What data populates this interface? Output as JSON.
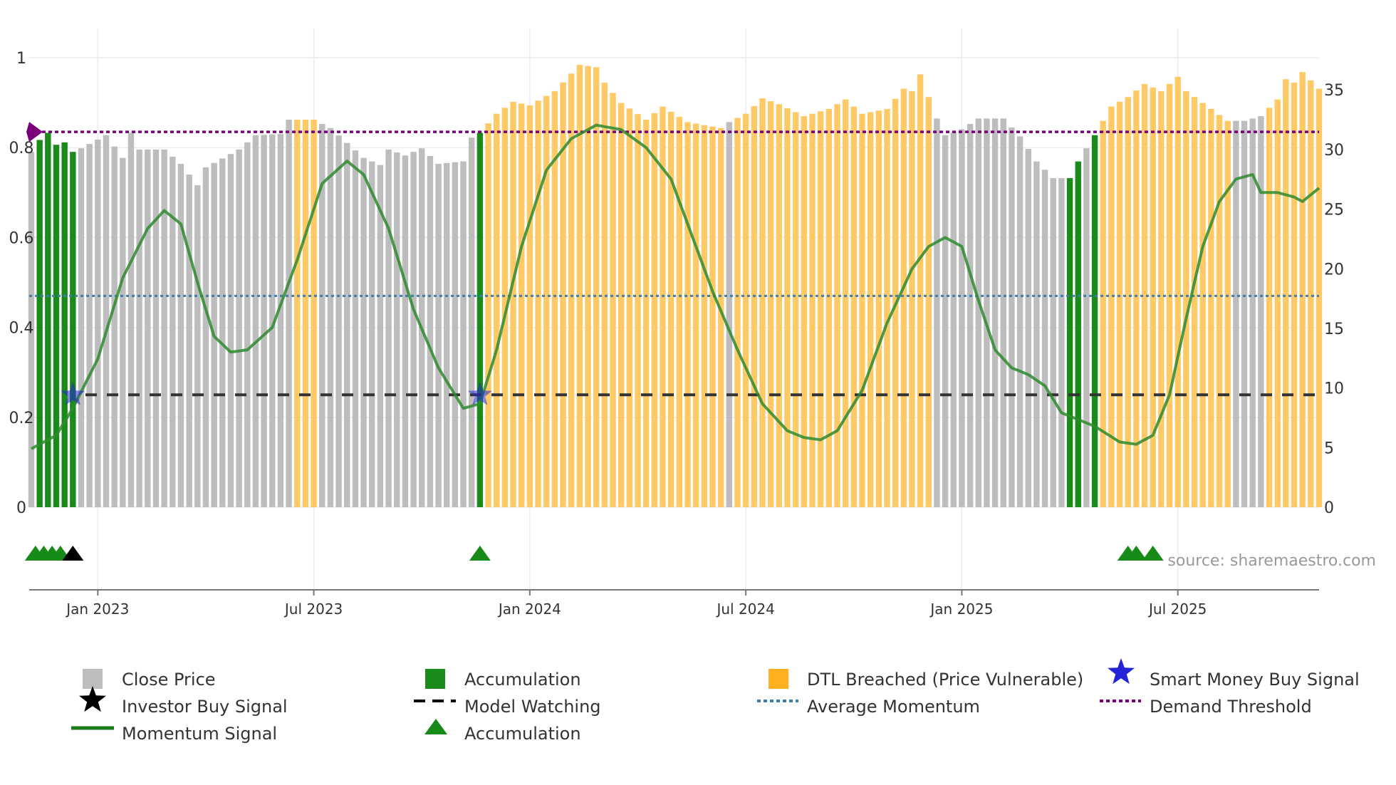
{
  "chart_data": {
    "type": "bar",
    "title": "",
    "xlabel": "",
    "ylabel_left": "",
    "ylabel_right": "",
    "source_label": "source: sharemaestro.com",
    "colors": {
      "close": "#bdbdbd",
      "accumulation": "#1a8a1a",
      "dtl": "#ffc966",
      "momentum": "#2e8b2e",
      "model_watching": "#333333",
      "average_momentum": "#3a7fb0",
      "demand_threshold": "#7a007a",
      "investor_signal": "#000000",
      "smart_money": "#2424d6",
      "accumulation_marker": "#178a17",
      "axis": "#444444",
      "grid": "#e9ecf2",
      "tick_text": "#333333",
      "source_text": "#999999"
    },
    "left_axis": {
      "range": [
        0,
        1
      ],
      "ticks": [
        0,
        0.2,
        0.4,
        0.6,
        0.8,
        1
      ],
      "tick_labels": [
        "0",
        "0.2",
        "0.4",
        "0.6",
        "0.8",
        "1"
      ]
    },
    "right_axis": {
      "range": [
        0,
        37.7
      ],
      "ticks": [
        0,
        5,
        10,
        15,
        20,
        25,
        30,
        35
      ],
      "tick_labels": [
        "0",
        "5",
        "10",
        "15",
        "20",
        "25",
        "30",
        "35"
      ]
    },
    "x_axis": {
      "ticks": [
        {
          "week": 8,
          "label": "Jan 2023"
        },
        {
          "week": 34,
          "label": "Jul 2023"
        },
        {
          "week": 60,
          "label": "Jan 2024"
        },
        {
          "week": 86,
          "label": "Jul 2024"
        },
        {
          "week": 112,
          "label": "Jan 2025"
        },
        {
          "week": 138,
          "label": "Jul 2025"
        }
      ]
    },
    "price_weeks": 156,
    "price_segments": [
      {
        "from": 0,
        "to": 0,
        "cat": "close"
      },
      {
        "from": 1,
        "to": 5,
        "cat": "accumulation"
      },
      {
        "from": 6,
        "to": 31,
        "cat": "close"
      },
      {
        "from": 32,
        "to": 34,
        "cat": "dtl"
      },
      {
        "from": 35,
        "to": 53,
        "cat": "close"
      },
      {
        "from": 54,
        "to": 54,
        "cat": "accumulation"
      },
      {
        "from": 55,
        "to": 83,
        "cat": "dtl"
      },
      {
        "from": 84,
        "to": 84,
        "cat": "close"
      },
      {
        "from": 85,
        "to": 108,
        "cat": "dtl"
      },
      {
        "from": 109,
        "to": 124,
        "cat": "close"
      },
      {
        "from": 125,
        "to": 126,
        "cat": "accumulation"
      },
      {
        "from": 127,
        "to": 127,
        "cat": "close"
      },
      {
        "from": 128,
        "to": 128,
        "cat": "accumulation"
      },
      {
        "from": 129,
        "to": 144,
        "cat": "dtl"
      },
      {
        "from": 145,
        "to": 148,
        "cat": "close"
      },
      {
        "from": 149,
        "to": 155,
        "cat": "dtl"
      }
    ],
    "price_keypoints": [
      [
        0,
        29.8
      ],
      [
        1,
        30.8
      ],
      [
        2,
        31.4
      ],
      [
        3,
        30.4
      ],
      [
        4,
        30.6
      ],
      [
        5,
        29.8
      ],
      [
        6,
        30.1
      ],
      [
        9,
        31.2
      ],
      [
        11,
        29.3
      ],
      [
        12,
        31.4
      ],
      [
        13,
        30.0
      ],
      [
        16,
        30.0
      ],
      [
        18,
        28.8
      ],
      [
        20,
        27.0
      ],
      [
        21,
        28.5
      ],
      [
        25,
        30.0
      ],
      [
        27,
        31.2
      ],
      [
        30,
        31.3
      ],
      [
        31,
        32.5
      ],
      [
        34,
        32.5
      ],
      [
        36,
        31.8
      ],
      [
        40,
        29.3
      ],
      [
        42,
        28.7
      ],
      [
        43,
        30.0
      ],
      [
        45,
        29.5
      ],
      [
        47,
        30.1
      ],
      [
        49,
        28.8
      ],
      [
        52,
        29.0
      ],
      [
        53,
        31.0
      ],
      [
        54,
        31.4
      ],
      [
        56,
        33.0
      ],
      [
        58,
        34.0
      ],
      [
        60,
        33.7
      ],
      [
        63,
        34.9
      ],
      [
        66,
        37.1
      ],
      [
        68,
        36.9
      ],
      [
        69,
        35.6
      ],
      [
        71,
        33.9
      ],
      [
        74,
        32.5
      ],
      [
        76,
        33.6
      ],
      [
        79,
        32.3
      ],
      [
        83,
        31.8
      ],
      [
        84,
        32.3
      ],
      [
        86,
        33.0
      ],
      [
        88,
        34.3
      ],
      [
        90,
        33.8
      ],
      [
        93,
        32.8
      ],
      [
        96,
        33.4
      ],
      [
        98,
        34.2
      ],
      [
        100,
        33.0
      ],
      [
        103,
        33.4
      ],
      [
        105,
        35.1
      ],
      [
        106,
        34.9
      ],
      [
        107,
        36.3
      ],
      [
        108,
        34.4
      ],
      [
        109,
        32.6
      ],
      [
        110,
        31.2
      ],
      [
        112,
        31.7
      ],
      [
        114,
        32.6
      ],
      [
        117,
        32.6
      ],
      [
        119,
        31.1
      ],
      [
        121,
        29.0
      ],
      [
        123,
        27.6
      ],
      [
        125,
        27.6
      ],
      [
        126,
        29.0
      ],
      [
        128,
        31.2
      ],
      [
        130,
        33.6
      ],
      [
        132,
        34.4
      ],
      [
        134,
        35.5
      ],
      [
        136,
        34.9
      ],
      [
        138,
        36.1
      ],
      [
        139,
        34.9
      ],
      [
        144,
        32.4
      ],
      [
        146,
        32.4
      ],
      [
        148,
        32.8
      ],
      [
        150,
        34.2
      ],
      [
        151,
        35.9
      ],
      [
        152,
        35.6
      ],
      [
        153,
        36.5
      ],
      [
        155,
        35.1
      ]
    ],
    "momentum_keypoints": [
      [
        0,
        0.13
      ],
      [
        3,
        0.16
      ],
      [
        5,
        0.22
      ],
      [
        8,
        0.33
      ],
      [
        11,
        0.51
      ],
      [
        14,
        0.62
      ],
      [
        16,
        0.66
      ],
      [
        18,
        0.63
      ],
      [
        20,
        0.5
      ],
      [
        22,
        0.38
      ],
      [
        24,
        0.345
      ],
      [
        26,
        0.35
      ],
      [
        29,
        0.4
      ],
      [
        32,
        0.55
      ],
      [
        35,
        0.72
      ],
      [
        38,
        0.77
      ],
      [
        40,
        0.74
      ],
      [
        43,
        0.62
      ],
      [
        46,
        0.44
      ],
      [
        49,
        0.31
      ],
      [
        52,
        0.22
      ],
      [
        54,
        0.23
      ],
      [
        56,
        0.35
      ],
      [
        59,
        0.58
      ],
      [
        62,
        0.75
      ],
      [
        65,
        0.82
      ],
      [
        68,
        0.85
      ],
      [
        71,
        0.84
      ],
      [
        74,
        0.8
      ],
      [
        77,
        0.73
      ],
      [
        79,
        0.63
      ],
      [
        82,
        0.48
      ],
      [
        85,
        0.35
      ],
      [
        88,
        0.23
      ],
      [
        91,
        0.17
      ],
      [
        93,
        0.155
      ],
      [
        95,
        0.15
      ],
      [
        97,
        0.17
      ],
      [
        100,
        0.26
      ],
      [
        103,
        0.41
      ],
      [
        106,
        0.53
      ],
      [
        108,
        0.58
      ],
      [
        110,
        0.6
      ],
      [
        112,
        0.58
      ],
      [
        114,
        0.46
      ],
      [
        116,
        0.35
      ],
      [
        118,
        0.31
      ],
      [
        120,
        0.295
      ],
      [
        122,
        0.27
      ],
      [
        124,
        0.21
      ],
      [
        126,
        0.195
      ],
      [
        128,
        0.18
      ],
      [
        131,
        0.145
      ],
      [
        133,
        0.14
      ],
      [
        135,
        0.16
      ],
      [
        137,
        0.25
      ],
      [
        139,
        0.42
      ],
      [
        141,
        0.58
      ],
      [
        143,
        0.68
      ],
      [
        145,
        0.73
      ],
      [
        147,
        0.74
      ],
      [
        148,
        0.7
      ],
      [
        150,
        0.7
      ],
      [
        152,
        0.69
      ],
      [
        153,
        0.68
      ],
      [
        155,
        0.71
      ]
    ],
    "reference_lines": {
      "model_watching": 0.25,
      "average_momentum": 0.47,
      "demand_threshold": 0.835
    },
    "smart_money_signals": [
      {
        "week": 5,
        "value": 0.25
      },
      {
        "week": 54,
        "value": 0.25
      }
    ],
    "accumulation_markers": [
      0.5,
      1.5,
      2.5,
      3.5,
      54,
      132,
      133,
      135
    ],
    "investor_buy_markers": [
      5
    ],
    "legend": {
      "close_price": "Close Price",
      "accumulation_bar": "Accumulation",
      "dtl_breached": "DTL Breached (Price Vulnerable)",
      "smart_money": "Smart Money Buy Signal",
      "investor_buy": "Investor Buy Signal",
      "model_watching": "Model Watching",
      "average_momentum": "Average Momentum",
      "demand_threshold": "Demand Threshold",
      "momentum_signal": "Momentum Signal",
      "accumulation_triangle": "Accumulation"
    }
  }
}
